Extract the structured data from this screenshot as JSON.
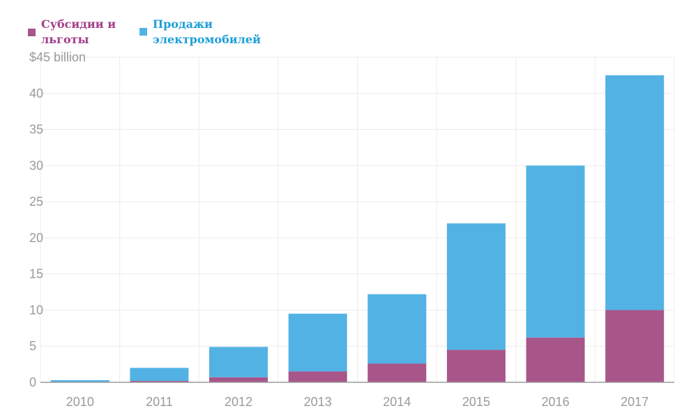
{
  "colors": {
    "subsidies": "#a8558a",
    "sales": "#52b2e4",
    "grid": "#ececec",
    "axis": "#9c9c9c",
    "tick_text": "#9a9a9a",
    "legend_subsidies_text": "#a03f8a",
    "legend_sales_text": "#1e9fd8"
  },
  "legend": {
    "subsidies_label": "Субсидии и льготы",
    "sales_label": "Продажи электромобилей"
  },
  "chart_data": {
    "type": "bar",
    "stacked": true,
    "categories": [
      "2010",
      "2011",
      "2012",
      "2013",
      "2014",
      "2015",
      "2016",
      "2017"
    ],
    "series": [
      {
        "name": "Субсидии и льготы",
        "color": "#a8558a",
        "values": [
          0,
          0.2,
          0.7,
          1.5,
          2.6,
          4.5,
          6.2,
          10.0
        ]
      },
      {
        "name": "Продажи электромобилей",
        "color": "#52b2e4",
        "values": [
          0.3,
          1.8,
          4.2,
          8.0,
          9.6,
          17.5,
          23.8,
          32.5
        ]
      }
    ],
    "ylim": [
      0,
      45
    ],
    "yticks": [
      0,
      5,
      10,
      15,
      20,
      25,
      30,
      35,
      40,
      45
    ],
    "ytick_labels": [
      "0",
      "5",
      "10",
      "15",
      "20",
      "25",
      "30",
      "35",
      "40",
      "$45 billion"
    ],
    "grid": true,
    "legend_position": "top-left"
  }
}
